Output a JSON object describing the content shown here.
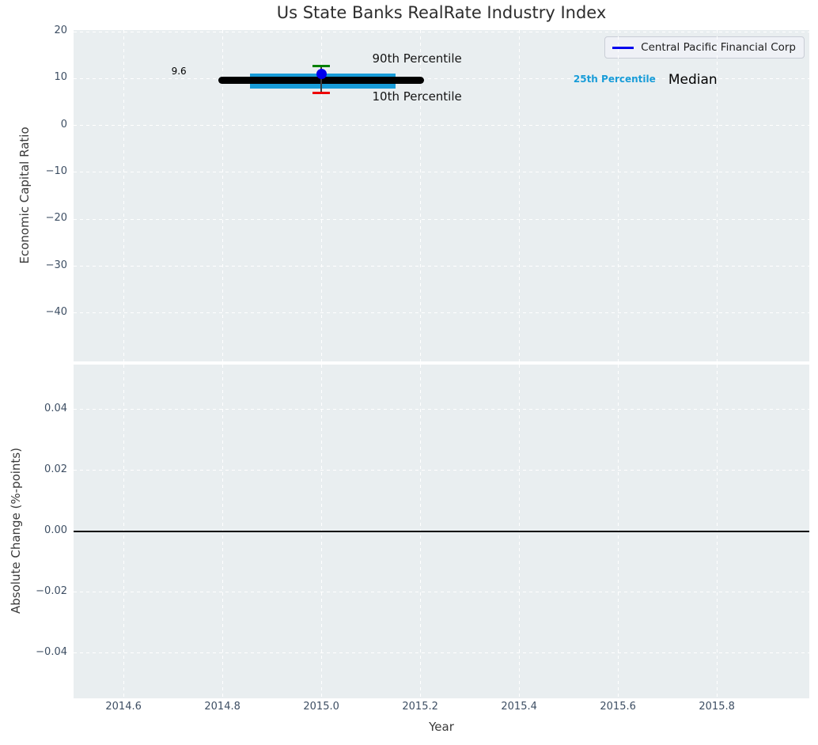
{
  "styles": {
    "figure_bg": "#ffffff",
    "plot_bg": "#e9eef0",
    "grid_color": "#ffffff",
    "tick_label_color": "#3d4e63",
    "axis_label_color": "#3a3a3a",
    "title_color": "#2d2d2d"
  },
  "chart_data": {
    "type": "scatter",
    "title": "Us State Banks RealRate Industry Index",
    "xlabel": "Year",
    "xlim": [
      2014.499,
      2015.987
    ],
    "xticks": {
      "values": [
        2014.6,
        2014.8,
        2015.0,
        2015.2,
        2015.4,
        2015.6,
        2015.8
      ],
      "labels": [
        "2014.6",
        "2014.8",
        "2015.0",
        "2015.2",
        "2015.4",
        "2015.6",
        "2015.8"
      ]
    },
    "grid": {
      "on": true,
      "style": "dashed",
      "color": "#ffffff"
    },
    "legend": {
      "label": "Central Pacific Financial Corp",
      "line_color": "#0000ee",
      "position": "upper right"
    },
    "panels": [
      {
        "ylabel": "Economic Capital Ratio",
        "ylim": [
          -50.3,
          20.34
        ],
        "yticks": {
          "values": [
            20,
            10,
            0,
            -10,
            -20,
            -30,
            -40
          ],
          "labels": [
            "20",
            "10",
            "0",
            "−10",
            "−20",
            "−30",
            "−40"
          ]
        },
        "series": {
          "company_point": {
            "name": "Central Pacific Financial Corp",
            "x": 2015.0,
            "y": 11.0,
            "color": "#0000ee"
          },
          "median_line": {
            "y": 9.6,
            "x_start": 2014.8,
            "x_end": 2015.2,
            "color": "#000000",
            "value_label": "9.6"
          },
          "iqr_band": {
            "y_low": 7.85,
            "y_high": 11.0,
            "x_start": 2014.855,
            "x_end": 2015.15,
            "color": "#189cd8"
          },
          "p90_cap": {
            "y": 12.7,
            "x": 2015.0,
            "half_width": 0.0176,
            "color": "#008000"
          },
          "p10_cap": {
            "y": 7.0,
            "x": 2015.0,
            "half_width": 0.0176,
            "color": "#ee0000"
          }
        },
        "annotations": [
          {
            "text": "9.6",
            "x": 2014.712,
            "y": 11.5,
            "color": "#000000",
            "size": 12,
            "weight": "normal",
            "anchor": "middle"
          },
          {
            "text": "90th Percentile",
            "x": 2015.103,
            "y": 14.25,
            "color": "#141414",
            "size": 15,
            "weight": "normal",
            "anchor": "start"
          },
          {
            "text": "10th Percentile",
            "x": 2015.103,
            "y": 6.1,
            "color": "#141414",
            "size": 15,
            "weight": "normal",
            "anchor": "start"
          },
          {
            "text": "25th Percentile",
            "x": 2015.51,
            "y": 9.9,
            "color": "#189cd8",
            "size": 12,
            "weight": "bold",
            "anchor": "start"
          },
          {
            "text": "Median",
            "x": 2015.702,
            "y": 9.72,
            "color": "#000000",
            "size": 17,
            "weight": "normal",
            "anchor": "start"
          }
        ]
      },
      {
        "ylabel": "Absolute Change (%-points)",
        "ylim": [
          -0.0548,
          0.0547
        ],
        "yticks": {
          "values": [
            0.04,
            0.02,
            0.0,
            -0.02,
            -0.04
          ],
          "labels": [
            "0.04",
            "0.02",
            "0.00",
            "−0.02",
            "−0.04"
          ]
        },
        "zero_line": {
          "y": 0.0,
          "color": "#000000"
        }
      }
    ]
  }
}
